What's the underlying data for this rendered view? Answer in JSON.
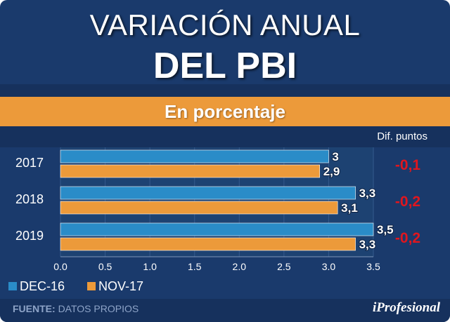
{
  "header": {
    "title_line1": "VARIACIÓN ANUAL",
    "title_line2": "DEL PBI",
    "subtitle": "En porcentaje",
    "diff_header": "Dif. puntos"
  },
  "footer": {
    "source_label": "FUENTE:",
    "source_value": "DATOS PROPIOS",
    "logo": "iProfesional"
  },
  "colors": {
    "navy": "#1a3a6c",
    "panel": "#1d4272",
    "series_a": "#2a8cc8",
    "series_b": "#ec9a3a",
    "diff": "#e0161e"
  },
  "chart_data": {
    "type": "bar",
    "orientation": "horizontal",
    "title": "VARIACIÓN ANUAL DEL PBI",
    "subtitle": "En porcentaje",
    "categories": [
      "2017",
      "2018",
      "2019"
    ],
    "series": [
      {
        "name": "DEC-16",
        "values": [
          3.0,
          3.3,
          3.5
        ],
        "labels": [
          "3",
          "3,3",
          "3,5"
        ],
        "color": "#2a8cc8"
      },
      {
        "name": "NOV-17",
        "values": [
          2.9,
          3.1,
          3.3
        ],
        "labels": [
          "2,9",
          "3,1",
          "3,3"
        ],
        "color": "#ec9a3a"
      }
    ],
    "differences": [
      "-0,1",
      "-0,2",
      "-0,2"
    ],
    "xlim": [
      0,
      3.5
    ],
    "xticks": [
      "0.0",
      "0.5",
      "1.0",
      "1.5",
      "2.0",
      "2.5",
      "3.0",
      "3.5"
    ],
    "xlabel": "",
    "ylabel": "",
    "grid": true,
    "legend": "bottom-left"
  }
}
